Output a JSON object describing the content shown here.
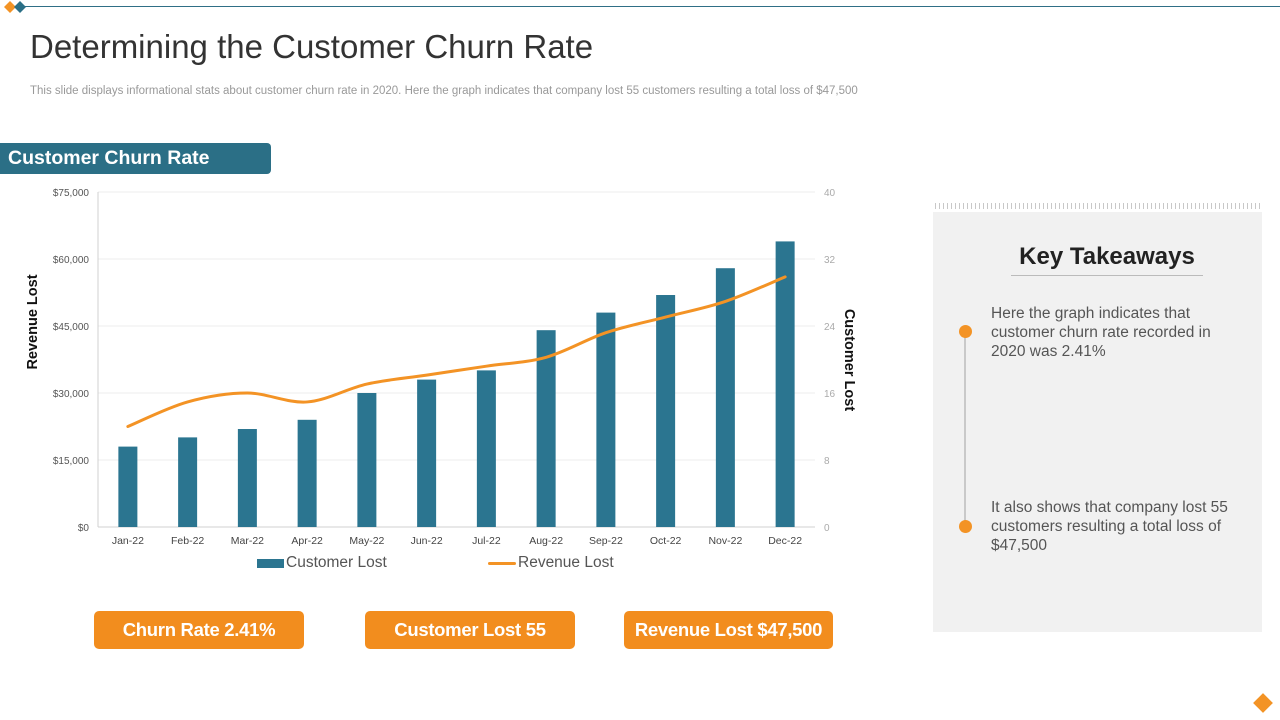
{
  "page": {
    "title": "Determining the Customer Churn Rate",
    "subtitle": "This slide displays informational stats about customer churn rate in 2020. Here the graph indicates that company lost 55 customers resulting a total loss of $47,500",
    "section_label": "Customer Churn Rate"
  },
  "colors": {
    "bar": "#2b7590",
    "line": "#f39325",
    "accent_orange": "#f28d1e",
    "section_teal": "#2b6f86"
  },
  "chart_data": {
    "type": "bar",
    "categories": [
      "Jan-22",
      "Feb-22",
      "Mar-22",
      "Apr-22",
      "May-22",
      "Jun-22",
      "Jul-22",
      "Aug-22",
      "Sep-22",
      "Oct-22",
      "Nov-22",
      "Dec-22"
    ],
    "series": [
      {
        "name": "Customer Lost",
        "type": "bar",
        "axis": "right",
        "values": [
          9.6,
          10.7,
          11.7,
          12.8,
          16.0,
          17.6,
          18.7,
          23.5,
          25.6,
          27.7,
          30.9,
          34.1
        ]
      },
      {
        "name": "Revenue Lost",
        "type": "line",
        "axis": "left",
        "values": [
          22500,
          28000,
          30000,
          28000,
          32000,
          34000,
          36000,
          38000,
          43500,
          47000,
          50500,
          56000
        ]
      }
    ],
    "ylabel": "Revenue Lost",
    "y2label": "Customer Lost",
    "ylim": [
      0,
      75000
    ],
    "y2lim": [
      0,
      40
    ],
    "yticks": [
      "$0",
      "$15,000",
      "$30,000",
      "$45,000",
      "$60,000",
      "$75,000"
    ],
    "y2ticks": [
      "0",
      "8",
      "16",
      "24",
      "32",
      "40"
    ],
    "grid": true,
    "legend": [
      "Customer Lost",
      "Revenue Lost"
    ]
  },
  "kpis": [
    "Churn Rate 2.41%",
    "Customer Lost 55",
    "Revenue Lost $47,500"
  ],
  "takeaways": {
    "title": "Key Takeaways",
    "items": [
      "Here the graph indicates that customer churn rate recorded in 2020 was 2.41%",
      "It also shows that company lost 55 customers resulting a total loss of $47,500"
    ]
  }
}
